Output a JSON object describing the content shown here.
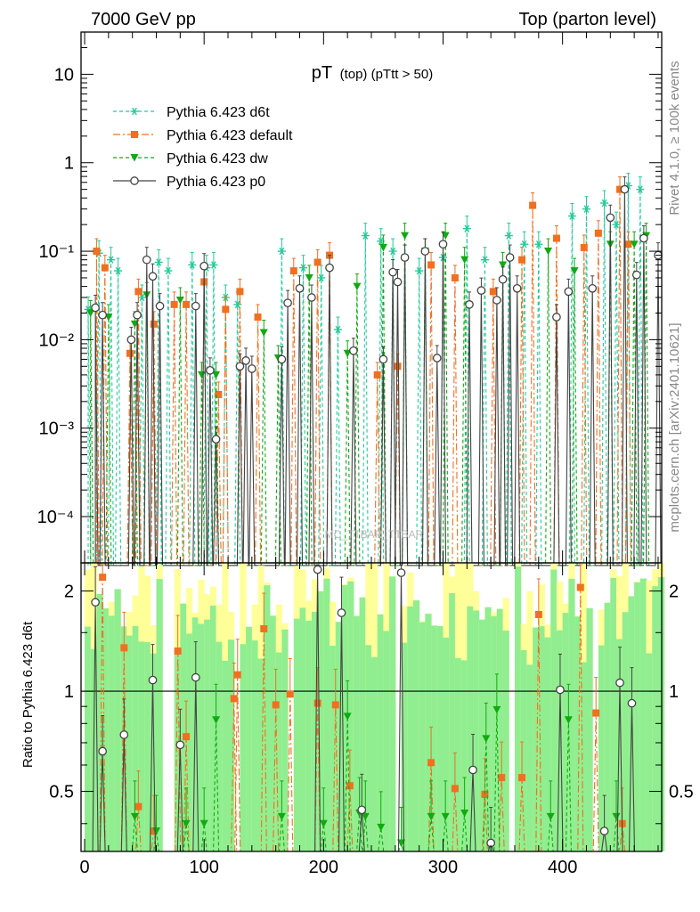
{
  "header": {
    "left": "7000 GeV pp",
    "right": "Top (parton level)"
  },
  "side_labels": {
    "rivet": "Rivet 4.1.0, ≥ 100k events",
    "mcplots": "mcplots.cern.ch [arXiv:2401.10621]"
  },
  "watermark": "MC_TTBAR_TTBAR",
  "colors": {
    "d6t": "#22cc99",
    "default": "#f07020",
    "dw": "#11aa11",
    "p0": "#444444",
    "band_inner": "#90ee90",
    "band_outer": "#ffff99"
  },
  "chart_data": [
    {
      "type": "line",
      "panel": "main",
      "title_main": "pT",
      "title_sub": "(top) (pTtt > 50)",
      "xlabel": "",
      "ylabel": "",
      "xlim": [
        -3,
        483
      ],
      "ylim": [
        3e-05,
        30
      ],
      "yscale": "log",
      "ytick_values": [
        0.0001,
        0.001,
        0.01,
        0.1,
        1,
        10
      ],
      "ytick_labels": [
        "10⁻⁴",
        "10⁻³",
        "10⁻²",
        "10⁻¹",
        "1",
        "10"
      ],
      "legend": [
        {
          "key": "d6t",
          "label": "Pythia 6.423 d6t",
          "marker": "star",
          "dash": "4,3"
        },
        {
          "key": "default",
          "label": "Pythia 6.423 default",
          "marker": "square",
          "dash": "8,3,2,3"
        },
        {
          "key": "dw",
          "label": "Pythia 6.423 dw",
          "marker": "triangle",
          "dash": "4,3"
        },
        {
          "key": "p0",
          "label": "Pythia 6.423 p0",
          "marker": "circle",
          "dash": ""
        }
      ],
      "series": [
        {
          "key": "d6t",
          "name": "Pythia 6.423 d6t",
          "points": [
            [
              3,
              0.022
            ],
            [
              12,
              0.095
            ],
            [
              22,
              0.08
            ],
            [
              28,
              0.06
            ],
            [
              48,
              0.03
            ],
            [
              62,
              0.075
            ],
            [
              70,
              0.06
            ],
            [
              90,
              0.07
            ],
            [
              102,
              0.065
            ],
            [
              108,
              0.07
            ],
            [
              118,
              0.03
            ],
            [
              128,
              0.025
            ],
            [
              165,
              0.1
            ],
            [
              183,
              0.065
            ],
            [
              198,
              0.05
            ],
            [
              212,
              0.013
            ],
            [
              235,
              0.15
            ],
            [
              248,
              0.13
            ],
            [
              258,
              0.1
            ],
            [
              268,
              0.085
            ],
            [
              280,
              0.06
            ],
            [
              300,
              0.085
            ],
            [
              320,
              0.18
            ],
            [
              335,
              0.08
            ],
            [
              355,
              0.15
            ],
            [
              368,
              0.12
            ],
            [
              380,
              0.12
            ],
            [
              408,
              0.25
            ],
            [
              420,
              0.3
            ],
            [
              435,
              0.35
            ],
            [
              445,
              0.2
            ],
            [
              455,
              0.55
            ],
            [
              465,
              0.5
            ]
          ]
        },
        {
          "key": "default",
          "name": "Pythia 6.423 default",
          "points": [
            [
              10,
              0.1
            ],
            [
              17,
              0.065
            ],
            [
              38,
              0.007
            ],
            [
              45,
              0.035
            ],
            [
              58,
              0.015
            ],
            [
              75,
              0.025
            ],
            [
              85,
              0.025
            ],
            [
              100,
              0.045
            ],
            [
              112,
              0.0024
            ],
            [
              118,
              0.022
            ],
            [
              130,
              0.035
            ],
            [
              145,
              0.018
            ],
            [
              175,
              0.06
            ],
            [
              195,
              0.075
            ],
            [
              205,
              0.09
            ],
            [
              245,
              0.004
            ],
            [
              262,
              0.005
            ],
            [
              290,
              0.07
            ],
            [
              310,
              0.05
            ],
            [
              342,
              0.035
            ],
            [
              366,
              0.08
            ],
            [
              375,
              0.33
            ],
            [
              395,
              0.14
            ],
            [
              418,
              0.11
            ],
            [
              430,
              0.16
            ],
            [
              448,
              0.5
            ],
            [
              455,
              0.12
            ]
          ]
        },
        {
          "key": "dw",
          "name": "Pythia 6.423 dw",
          "points": [
            [
              5,
              0.02
            ],
            [
              20,
              0.018
            ],
            [
              42,
              0.015
            ],
            [
              52,
              0.032
            ],
            [
              80,
              0.028
            ],
            [
              98,
              0.004
            ],
            [
              110,
              0.004
            ],
            [
              150,
              0.012
            ],
            [
              162,
              0.0062
            ],
            [
              188,
              0.05
            ],
            [
              220,
              0.007
            ],
            [
              228,
              0.04
            ],
            [
              250,
              0.11
            ],
            [
              268,
              0.15
            ],
            [
              285,
              0.1
            ],
            [
              302,
              0.15
            ],
            [
              318,
              0.08
            ],
            [
              350,
              0.07
            ],
            [
              388,
              0.1
            ],
            [
              410,
              0.06
            ],
            [
              440,
              0.12
            ],
            [
              460,
              0.12
            ],
            [
              470,
              0.15
            ]
          ]
        },
        {
          "key": "p0",
          "name": "Pythia 6.423 p0",
          "points": [
            [
              9,
              0.023
            ],
            [
              15,
              0.019
            ],
            [
              39,
              0.01
            ],
            [
              44,
              0.019
            ],
            [
              52,
              0.08
            ],
            [
              57,
              0.052
            ],
            [
              63,
              0.024
            ],
            [
              93,
              0.024
            ],
            [
              100,
              0.068
            ],
            [
              105,
              0.0045
            ],
            [
              110,
              0.00075
            ],
            [
              130,
              0.005
            ],
            [
              135,
              0.0058
            ],
            [
              140,
              0.0047
            ],
            [
              165,
              0.006
            ],
            [
              170,
              0.026
            ],
            [
              180,
              0.038
            ],
            [
              190,
              0.03
            ],
            [
              205,
              0.065
            ],
            [
              225,
              0.0075
            ],
            [
              250,
              0.006
            ],
            [
              258,
              0.058
            ],
            [
              262,
              0.045
            ],
            [
              268,
              0.085
            ],
            [
              285,
              0.1
            ],
            [
              295,
              0.0062
            ],
            [
              300,
              0.12
            ],
            [
              322,
              0.025
            ],
            [
              332,
              0.036
            ],
            [
              345,
              0.028
            ],
            [
              350,
              0.048
            ],
            [
              356,
              0.085
            ],
            [
              362,
              0.038
            ],
            [
              395,
              0.018
            ],
            [
              405,
              0.035
            ],
            [
              425,
              0.038
            ],
            [
              440,
              0.24
            ],
            [
              452,
              0.5
            ],
            [
              462,
              0.054
            ],
            [
              468,
              0.14
            ],
            [
              480,
              0.09
            ]
          ]
        }
      ]
    },
    {
      "type": "line",
      "panel": "ratio",
      "ylabel": "Ratio to Pythia 6.423 d6t",
      "xlabel": "",
      "xlim": [
        -3,
        483
      ],
      "ylim": [
        0.33,
        2.43
      ],
      "yscale": "log",
      "xtick_values": [
        0,
        100,
        200,
        300,
        400
      ],
      "xtick_labels": [
        "0",
        "100",
        "200",
        "300",
        "400"
      ],
      "ytick_values": [
        0.5,
        1,
        2
      ],
      "ytick_labels": [
        "0.5",
        "1",
        "2"
      ],
      "reference": 1,
      "series": [
        {
          "key": "default",
          "name": "Pythia 6.423 default",
          "points": [
            [
              15,
              2.2
            ],
            [
              33,
              1.35
            ],
            [
              45,
              0.45
            ],
            [
              58,
              0.38
            ],
            [
              85,
              0.73
            ],
            [
              78,
              1.32
            ],
            [
              125,
              0.95
            ],
            [
              128,
              1.12
            ],
            [
              150,
              1.54
            ],
            [
              160,
              0.91
            ],
            [
              172,
              0.98
            ],
            [
              195,
              0.92
            ],
            [
              210,
              0.91
            ],
            [
              222,
              0.52
            ],
            [
              290,
              0.61
            ],
            [
              310,
              0.51
            ],
            [
              335,
              0.49
            ],
            [
              349,
              0.55
            ],
            [
              366,
              0.55
            ],
            [
              380,
              1.7
            ],
            [
              415,
              2.05
            ],
            [
              428,
              0.86
            ],
            [
              450,
              0.4
            ]
          ]
        },
        {
          "key": "dw",
          "name": "Pythia 6.423 dw",
          "points": [
            [
              42,
              0.42
            ],
            [
              60,
              0.38
            ],
            [
              85,
              0.4
            ],
            [
              100,
              0.4
            ],
            [
              110,
              0.82
            ],
            [
              165,
              0.42
            ],
            [
              200,
              0.4
            ],
            [
              220,
              0.84
            ],
            [
              230,
              0.43
            ],
            [
              235,
              0.42
            ],
            [
              248,
              0.39
            ],
            [
              265,
              0.35
            ],
            [
              290,
              0.42
            ],
            [
              302,
              0.42
            ],
            [
              318,
              0.43
            ],
            [
              336,
              0.72
            ],
            [
              345,
              0.88
            ],
            [
              390,
              0.42
            ],
            [
              405,
              0.82
            ],
            [
              445,
              0.42
            ]
          ]
        },
        {
          "key": "p0",
          "name": "Pythia 6.423 p0",
          "points": [
            [
              9,
              1.85
            ],
            [
              15,
              0.66
            ],
            [
              33,
              0.74
            ],
            [
              57,
              1.08
            ],
            [
              80,
              0.69
            ],
            [
              93,
              1.1
            ],
            [
              195,
              2.32
            ],
            [
              215,
              1.72
            ],
            [
              232,
              0.44
            ],
            [
              265,
              2.27
            ],
            [
              325,
              0.58
            ],
            [
              340,
              0.35
            ],
            [
              398,
              1.01
            ],
            [
              435,
              0.38
            ],
            [
              448,
              1.06
            ],
            [
              458,
              0.92
            ]
          ]
        }
      ]
    }
  ]
}
